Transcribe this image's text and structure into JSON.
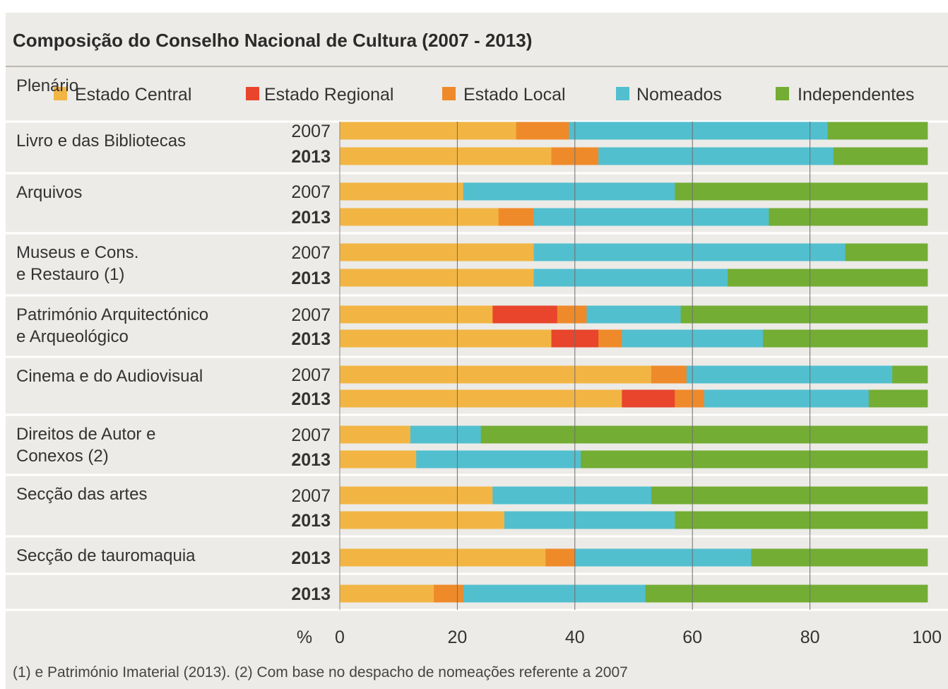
{
  "chart_data": {
    "type": "bar",
    "orientation": "horizontal",
    "stacked": true,
    "title": "Composição do Conselho Nacional de Cultura (2007 - 2013)",
    "xlabel": "%",
    "xlim": [
      0,
      100
    ],
    "xticks": [
      "0",
      "20",
      "40",
      "60",
      "80",
      "100"
    ],
    "grid": true,
    "legend_position": "top",
    "series": [
      {
        "name": "Estado Central",
        "color": "#f2b544"
      },
      {
        "name": "Estado Regional",
        "color": "#e8452c"
      },
      {
        "name": "Estado Local",
        "color": "#ef8a2a"
      },
      {
        "name": "Nomeados",
        "color": "#52bfcf"
      },
      {
        "name": "Independentes",
        "color": "#73ad34"
      }
    ],
    "groups": [
      {
        "label": [
          "Plenário"
        ],
        "bars": [
          {
            "year": "2007",
            "values": [
              30,
              0,
              9,
              44,
              17
            ]
          },
          {
            "year": "2013",
            "values": [
              36,
              0,
              8,
              40,
              16
            ]
          }
        ]
      },
      {
        "label": [
          "Livro e das Bibliotecas"
        ],
        "bars": [
          {
            "year": "2007",
            "values": [
              21,
              0,
              0,
              36,
              43
            ]
          },
          {
            "year": "2013",
            "values": [
              27,
              0,
              6,
              40,
              27
            ]
          }
        ]
      },
      {
        "label": [
          "Arquivos"
        ],
        "bars": [
          {
            "year": "2007",
            "values": [
              33,
              0,
              0,
              53,
              14
            ]
          },
          {
            "year": "2013",
            "values": [
              33,
              0,
              0,
              33,
              34
            ]
          }
        ]
      },
      {
        "label": [
          "Museus e Cons.",
          "e Restauro (1)"
        ],
        "bars": [
          {
            "year": "2007",
            "values": [
              26,
              11,
              5,
              16,
              42
            ]
          },
          {
            "year": "2013",
            "values": [
              36,
              8,
              4,
              24,
              28
            ]
          }
        ]
      },
      {
        "label": [
          "Património Arquitectónico",
          "e Arqueológico"
        ],
        "bars": [
          {
            "year": "2007",
            "values": [
              53,
              0,
              6,
              35,
              6
            ]
          },
          {
            "year": "2013",
            "values": [
              48,
              9,
              5,
              28,
              10
            ]
          }
        ]
      },
      {
        "label": [
          "Cinema e do Audiovisual"
        ],
        "bars": [
          {
            "year": "2007",
            "values": [
              12,
              0,
              0,
              12,
              76
            ]
          },
          {
            "year": "2013",
            "values": [
              13,
              0,
              0,
              28,
              59
            ]
          }
        ]
      },
      {
        "label": [
          "Direitos de Autor e",
          "Conexos (2)"
        ],
        "bars": [
          {
            "year": "2007",
            "values": [
              26,
              0,
              0,
              27,
              47
            ]
          },
          {
            "year": "2013",
            "values": [
              28,
              0,
              0,
              29,
              43
            ]
          }
        ]
      },
      {
        "label": [
          "Secção das artes"
        ],
        "bars": [
          {
            "year": "2013",
            "values": [
              35,
              0,
              5,
              30,
              30
            ]
          }
        ]
      },
      {
        "label": [
          "Secção de tauromaquia"
        ],
        "bars": [
          {
            "year": "2013",
            "values": [
              16,
              0,
              5,
              31,
              48
            ]
          }
        ]
      }
    ],
    "footnote": "(1) e Património Imaterial (2013). (2) Com base no despacho de nomeações referente a 2007"
  }
}
